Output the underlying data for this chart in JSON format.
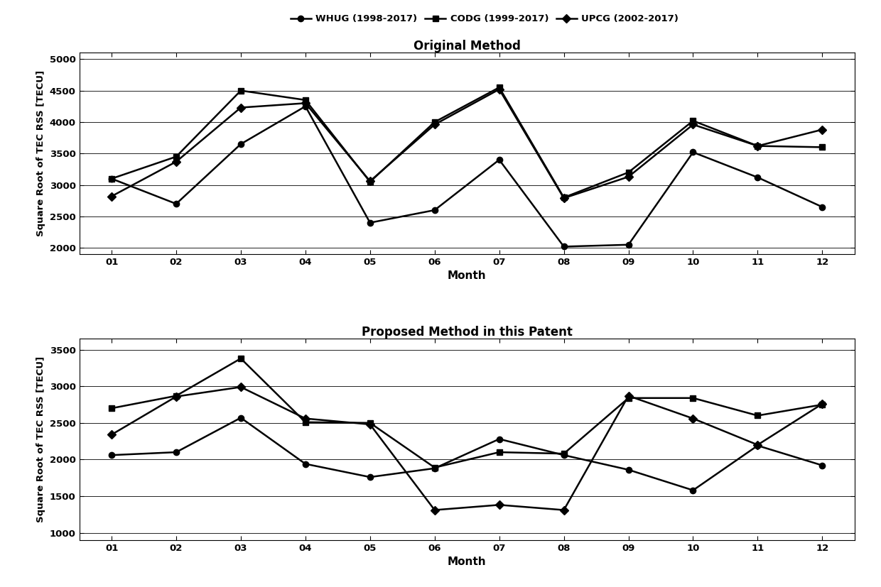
{
  "months": [
    "01",
    "02",
    "03",
    "04",
    "05",
    "06",
    "07",
    "08",
    "09",
    "10",
    "11",
    "12"
  ],
  "top": {
    "title": "Original Method",
    "ylabel": "Square Root of TEC RSS [TECU]",
    "xlabel": "Month",
    "ylim": [
      1900,
      5100
    ],
    "yticks": [
      2000,
      2500,
      3000,
      3500,
      4000,
      4500,
      5000
    ],
    "series": {
      "WHUG (1998-2017)": [
        3100,
        2700,
        3650,
        4250,
        2400,
        2600,
        3400,
        2020,
        2050,
        3520,
        3120,
        2650
      ],
      "CODG (1999-2017)": [
        3100,
        3450,
        4500,
        4350,
        3050,
        4000,
        4550,
        2800,
        3200,
        4020,
        3620,
        3600
      ],
      "UPCG (2002-2017)": [
        2820,
        3370,
        4230,
        4300,
        3060,
        3960,
        4520,
        2790,
        3130,
        3960,
        3620,
        3880
      ]
    }
  },
  "bottom": {
    "title": "Proposed Method in this Patent",
    "ylabel": "Square Root of TEC RSS [TECU]",
    "xlabel": "Month",
    "ylim": [
      900,
      3650
    ],
    "yticks": [
      1000,
      1500,
      2000,
      2500,
      3000,
      3500
    ],
    "series": {
      "WHUG (1998-2017)": [
        2060,
        2100,
        2570,
        1940,
        1760,
        1880,
        2280,
        2060,
        1860,
        1580,
        2190,
        1920
      ],
      "CODG (1999-2017)": [
        2700,
        2870,
        3380,
        2510,
        2500,
        1890,
        2100,
        2080,
        2840,
        2840,
        2600,
        2750
      ],
      "UPCG (2002-2017)": [
        2340,
        2860,
        2990,
        2560,
        2480,
        1310,
        1380,
        1310,
        2870,
        2560,
        2200,
        2760
      ]
    }
  },
  "legend_labels": [
    "WHUG (1998-2017)",
    "CODG (1999-2017)",
    "UPCG (2002-2017)"
  ],
  "markers": [
    "o",
    "s",
    "D"
  ],
  "marker_sizes": [
    6,
    6,
    6
  ],
  "linewidths": [
    1.8,
    1.8,
    1.8
  ],
  "figsize": [
    12.4,
    8.27
  ],
  "dpi": 100
}
